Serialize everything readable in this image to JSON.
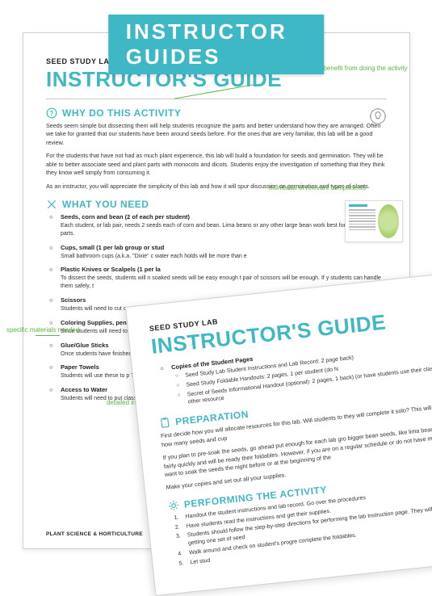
{
  "banner": "INSTRUCTOR GUIDES",
  "colors": {
    "teal": "#3fb8c5",
    "green": "#5cb544",
    "text": "#333333"
  },
  "page1": {
    "seed_label": "SEED STUDY LAB",
    "title": "INSTRUCTOR'S GUIDE",
    "why": {
      "heading": "WHY DO THIS ACTIVITY",
      "p1": "Seeds seem simple but dissecting them will help students recognize the parts and better understand how they are arranged. Often we take for granted that our students have been around seeds before. For the ones that are very familiar, this lab will be a good review.",
      "p2": "For the students that have not had as much plant experience, this lab will build a foundation for seeds and germination. They will be able to better associate seed and plant parts with monocots and dicots. Students enjoy the investigation of something that they think they know well simply from consuming it.",
      "p3": "As an instructor, you will appreciate the simplicity of this lab and how it will spur discussion on germination and types of plants."
    },
    "need": {
      "heading": "WHAT YOU NEED",
      "items": [
        {
          "t": "Seeds, corn and bean (2 of each per student)",
          "d": "Each student, or lab pair, needs 2 seeds each of corn and bean. Lima beans or any other large bean work best for observing parts."
        },
        {
          "t": "Cups, small (1 per lab group or stud",
          "d": "Small bathroom cups (a.k.a. \"Dixie\" c\nwater each holds will be more than e"
        },
        {
          "t": "Plastic Knives or Scalpels (1 per la",
          "d": "To dissect the seeds, students will n\nsoaked seeds will be easy enough t\npair of scissors will be enough. If y\nstudents can handle them safely, t"
        },
        {
          "t": "Scissors",
          "d": "Students will need to cut out the\nset, a few pairs available at the f"
        },
        {
          "t": "Coloring Supplies, pencils or c",
          "d": "Since students will need to colo\nown set. If you do not have eno\nhave students return them as t"
        },
        {
          "t": "Glue/Glue Sticks",
          "d": "Once students have finished t\nto have enough glue sticks for\nthe job done."
        },
        {
          "t": "Paper Towels",
          "d": "Students will use these to p\nTherefore each lab group"
        },
        {
          "t": "Access to Water",
          "d": "Students will need to put\nclass. If you don't have a"
        }
      ]
    },
    "footer": "PLANT SCIENCE & HORTICULTURE"
  },
  "page2": {
    "seed_label": "SEED STUDY LAB",
    "title": "INSTRUCTOR'S GUIDE",
    "copies": {
      "t": "Copies of the Student Pages",
      "subs": [
        "Seed Study Lab Student Instructions and Lab Record: 2 page\nback)",
        "Seed Study Foldable Handouts: 2 pages, 1 per student (do N",
        "Secret of Seeds Informational Handout (optional): 2 pages, 1\nback) (or have students use their class notes or other resource"
      ]
    },
    "prep": {
      "heading": "PREPARATION",
      "p1": "First decide how you will allocate resources for this lab. Will students to\nthey will complete it solo? This will determine how many seeds and cup",
      "p2": "If you plan to pre-soak the seeds, go ahead put enough for each lab gro\nbigger bean seeds, like lima beans, soften fairly quickly and will be ready\ntheir foldables. However, if you are on a regular schedule or do not have m\nyou may want to soak the seeds the night before or at the beginning of the",
      "p3": "Make your copies and set out all your supplies."
    },
    "perform": {
      "heading": "PERFORMING THE ACTIVITY",
      "items": [
        "Handout the student instructions and lab record. Go over the procedures",
        "Have students read the instructions and get their supplies.",
        "Students should follow the step-by-step directions for performing the lab\nInstruction page. They will begin by first getting one set of seed",
        "Walk around and check on student's progre\ncomplete the foldables.",
        "Let stud"
      ]
    }
  },
  "annotations": {
    "benefit": "how your students will benefit\nfrom doing the activity",
    "thumbnail": "thumbnail of\nrelevant\ncomponents",
    "materials": "specific\nmaterials\nneeded",
    "detailed": "detailed\ninstructions\nfor\nconducting\nthe activity\n(no\nguessing)"
  }
}
